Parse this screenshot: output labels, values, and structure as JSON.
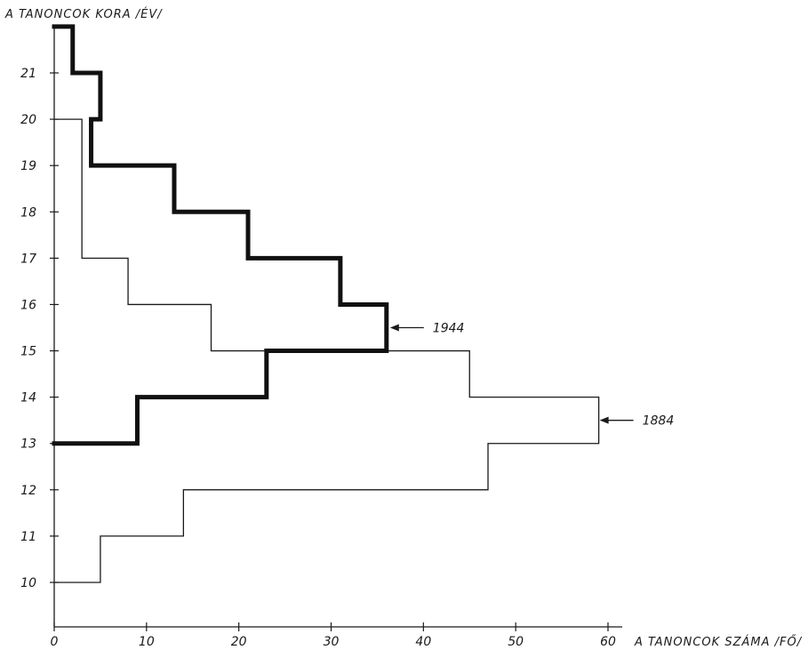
{
  "chart_data": {
    "type": "line",
    "step": true,
    "orientation": "horizontal-values",
    "xlabel": "A TANONCOK SZÁMA /FŐ/",
    "ylabel": "A TANONCOK KORA /ÉV/",
    "xlim": [
      0,
      60
    ],
    "ylim": [
      9,
      22
    ],
    "x_ticks": [
      "0",
      "10",
      "20",
      "30",
      "40",
      "50",
      "60"
    ],
    "y_ticks": [
      "10",
      "11",
      "12",
      "13",
      "14",
      "15",
      "16",
      "17",
      "18",
      "19",
      "20",
      "21"
    ],
    "grid": false,
    "categories": [
      "10",
      "11",
      "12",
      "13",
      "14",
      "15",
      "16",
      "17",
      "18",
      "19",
      "20",
      "21"
    ],
    "series": [
      {
        "name": "1884",
        "values": [
          5,
          14,
          47,
          59,
          45,
          17,
          8,
          3,
          0,
          3,
          0,
          0
        ],
        "color": "#1a1a1a",
        "line_weight": "thin"
      },
      {
        "name": "1944",
        "values": [
          0,
          0,
          0,
          9,
          23,
          36,
          31,
          21,
          13,
          4,
          5,
          2
        ],
        "color": "#111111",
        "line_weight": "thick"
      }
    ]
  }
}
